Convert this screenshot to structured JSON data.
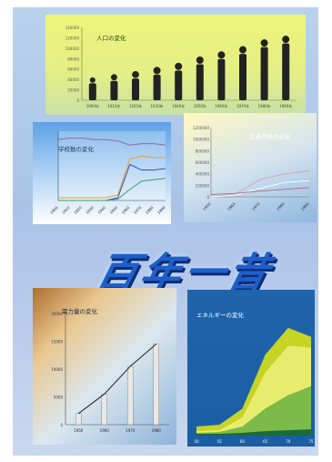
{
  "headline": "百年一昔",
  "chart_data": [
    {
      "type": "bar",
      "title": "人口の変化",
      "categories": [
        "1900年",
        "1910年",
        "1920年",
        "1930年",
        "1940年",
        "1950年",
        "1960年",
        "1970年",
        "1980年",
        "1990年"
      ],
      "values": [
        44000000,
        50000000,
        56000000,
        64000000,
        72000000,
        84000000,
        94000000,
        104000000,
        117000000,
        124000000
      ],
      "yticks": [
        "140000",
        "120000",
        "100000",
        "80000",
        "60000",
        "40000",
        "20000",
        "0"
      ],
      "ylim": [
        0,
        140000000
      ]
    },
    {
      "type": "line",
      "title": "学校数の変化",
      "categories": [
        "1900",
        "1910",
        "1920",
        "1930",
        "1940",
        "1950",
        "1960",
        "1970",
        "1980",
        "1990"
      ],
      "series": [
        {
          "values": [
            2,
            2,
            2,
            2,
            2,
            4,
            30,
            32,
            31,
            31
          ]
        },
        {
          "values": [
            0,
            0,
            0,
            0,
            0,
            2,
            26,
            22,
            22,
            23
          ]
        },
        {
          "values": [
            0,
            0,
            0,
            0,
            0,
            1,
            8,
            14,
            15,
            16
          ]
        },
        {
          "values": [
            44,
            45,
            45,
            44,
            44,
            43,
            40,
            41,
            41,
            40
          ]
        }
      ],
      "ylim": [
        0,
        50
      ]
    },
    {
      "type": "line",
      "title": "交通手段の変化",
      "categories": [
        "1950",
        "1960",
        "1970",
        "1980",
        "1990"
      ],
      "series": [
        {
          "values": [
            10000,
            50000,
            300000,
            400000,
            450000
          ]
        },
        {
          "values": [
            0,
            30000,
            150000,
            250000,
            280000
          ]
        },
        {
          "values": [
            40000,
            60000,
            100000,
            130000,
            160000
          ]
        }
      ],
      "yticks": [
        "1200000",
        "1000000",
        "800000",
        "600000",
        "400000",
        "200000",
        "0"
      ],
      "ylim": [
        0,
        1200000
      ]
    },
    {
      "type": "bar",
      "title": "電力量の変化",
      "categories": [
        "1950",
        "1960",
        "1970",
        "1980"
      ],
      "values": [
        2000,
        5500,
        10500,
        14500
      ],
      "yticks": [
        "20000",
        "15000",
        "10000",
        "5000",
        "0"
      ],
      "ylim": [
        0,
        20000
      ]
    },
    {
      "type": "area",
      "title": "エネルギーの変化",
      "categories": [
        "50",
        "55",
        "60",
        "65",
        "70",
        "75"
      ],
      "series": [
        {
          "values": [
            10,
            12,
            30,
            90,
            120,
            110
          ]
        },
        {
          "values": [
            5,
            6,
            20,
            70,
            100,
            98
          ]
        },
        {
          "values": [
            3,
            4,
            10,
            30,
            45,
            55
          ]
        },
        {
          "values": [
            2,
            2,
            3,
            5,
            6,
            7
          ]
        }
      ],
      "ylim": [
        0,
        140
      ]
    }
  ]
}
